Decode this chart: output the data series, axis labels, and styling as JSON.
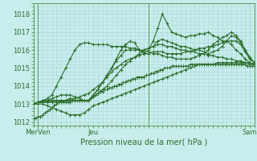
{
  "title": "",
  "xlabel": "Pression niveau de la mer( hPa )",
  "ylabel": "",
  "bg_color": "#c8edec",
  "grid_color": "#a8d8d8",
  "line_color": "#2d6e2d",
  "spine_color": "#5a9a5a",
  "ylim": [
    1011.8,
    1018.6
  ],
  "xlim": [
    0,
    96
  ],
  "yticks": [
    1012,
    1013,
    1014,
    1015,
    1016,
    1017,
    1018
  ],
  "xtick_positions": [
    2,
    26,
    50,
    94
  ],
  "xtick_labels": [
    "MerVen",
    "Jeu",
    "",
    "Sam"
  ],
  "marker": "+",
  "markersize": 3,
  "linewidth": 0.8,
  "lines": [
    {
      "x": [
        0,
        1,
        2,
        3,
        4,
        5,
        6,
        7,
        8,
        9,
        10,
        11,
        12,
        13,
        14,
        15,
        16,
        17,
        18,
        19,
        20,
        21,
        22,
        23,
        24,
        25,
        26,
        27,
        28,
        29,
        30,
        31,
        32,
        33,
        34,
        35,
        36,
        37,
        38,
        39,
        40,
        41,
        42,
        43,
        44,
        45,
        46,
        47,
        48,
        49,
        50,
        51,
        52,
        53,
        54,
        55,
        56,
        57,
        58,
        59,
        60,
        61,
        62,
        63,
        64,
        65,
        66,
        67,
        68,
        69,
        70,
        71,
        72,
        73,
        74,
        75,
        76,
        77,
        78,
        79,
        80,
        81,
        82,
        83,
        84,
        85,
        86,
        87,
        88,
        89,
        90,
        91,
        92,
        93,
        94,
        95,
        96
      ],
      "y": [
        1012.2,
        1012.2,
        1012.3,
        1012.3,
        1012.4,
        1012.5,
        1012.6,
        1012.7,
        1012.8,
        1012.9,
        1013.0,
        1013.1,
        1013.1,
        1013.1,
        1013.1,
        1013.1,
        1013.1,
        1013.2,
        1013.2,
        1013.2,
        1013.2,
        1013.2,
        1013.2,
        1013.2,
        1013.2,
        1013.3,
        1013.4,
        1013.5,
        1013.6,
        1013.7,
        1013.7,
        1013.8,
        1013.8,
        1013.9,
        1013.9,
        1014.0,
        1014.0,
        1014.1,
        1014.1,
        1014.2,
        1014.2,
        1014.3,
        1014.3,
        1014.4,
        1014.4,
        1014.5,
        1014.5,
        1014.5,
        1014.5,
        1014.6,
        1014.6,
        1014.7,
        1014.7,
        1014.8,
        1014.8,
        1014.9,
        1014.9,
        1015.0,
        1015.0,
        1015.0,
        1015.1,
        1015.1,
        1015.1,
        1015.1,
        1015.1,
        1015.1,
        1015.1,
        1015.1,
        1015.2,
        1015.2,
        1015.2,
        1015.2,
        1015.2,
        1015.2,
        1015.2,
        1015.2,
        1015.2,
        1015.2,
        1015.2,
        1015.2,
        1015.2,
        1015.2,
        1015.2,
        1015.2,
        1015.2,
        1015.2,
        1015.2,
        1015.2,
        1015.2,
        1015.2,
        1015.2,
        1015.2,
        1015.2,
        1015.1,
        1015.1,
        1015.1,
        1015.1
      ]
    },
    {
      "x": [
        0,
        2,
        4,
        6,
        8,
        10,
        12,
        14,
        16,
        18,
        20,
        22,
        24,
        26,
        28,
        30,
        32,
        34,
        36,
        38,
        40,
        42,
        44,
        46,
        48,
        50,
        52,
        54,
        56,
        58,
        60,
        62,
        64,
        66,
        68,
        70,
        72,
        74,
        76,
        78,
        80,
        82,
        84,
        86,
        88,
        90,
        92,
        94,
        96
      ],
      "y": [
        1013.0,
        1013.1,
        1013.1,
        1013.2,
        1013.2,
        1013.2,
        1013.2,
        1013.2,
        1013.3,
        1013.2,
        1013.2,
        1013.2,
        1013.2,
        1013.4,
        1013.6,
        1013.8,
        1014.0,
        1014.3,
        1014.6,
        1014.9,
        1015.2,
        1015.4,
        1015.6,
        1015.8,
        1016.0,
        1016.1,
        1016.2,
        1016.3,
        1016.3,
        1016.2,
        1016.2,
        1016.1,
        1016.0,
        1016.0,
        1015.9,
        1015.9,
        1015.8,
        1015.8,
        1015.7,
        1015.7,
        1015.6,
        1015.6,
        1015.5,
        1015.5,
        1015.4,
        1015.4,
        1015.3,
        1015.3,
        1015.2
      ]
    },
    {
      "x": [
        0,
        2,
        4,
        6,
        8,
        10,
        12,
        14,
        16,
        18,
        20,
        22,
        24,
        26,
        28,
        30,
        32,
        34,
        36,
        38,
        40,
        42,
        44,
        46,
        48,
        50,
        52,
        54,
        56,
        58,
        60,
        62,
        64,
        66,
        68,
        70,
        72,
        74,
        76,
        78,
        80,
        82,
        84,
        86,
        88,
        90,
        92,
        94,
        96
      ],
      "y": [
        1013.0,
        1013.1,
        1013.2,
        1013.2,
        1013.3,
        1013.4,
        1013.5,
        1013.5,
        1013.5,
        1013.4,
        1013.3,
        1013.2,
        1013.2,
        1013.5,
        1013.8,
        1014.2,
        1014.6,
        1015.0,
        1015.5,
        1016.0,
        1016.3,
        1016.5,
        1016.4,
        1016.0,
        1015.8,
        1016.0,
        1016.5,
        1017.2,
        1018.0,
        1017.5,
        1017.0,
        1016.9,
        1016.8,
        1016.7,
        1016.8,
        1016.8,
        1016.9,
        1016.9,
        1017.0,
        1016.8,
        1016.7,
        1016.5,
        1016.5,
        1016.3,
        1016.0,
        1015.8,
        1015.5,
        1015.3,
        1015.2
      ]
    },
    {
      "x": [
        0,
        2,
        4,
        6,
        8,
        10,
        12,
        14,
        16,
        18,
        20,
        22,
        24,
        26,
        28,
        30,
        32,
        34,
        36,
        38,
        40,
        42,
        44,
        46,
        48,
        50,
        52,
        54,
        56,
        58,
        60,
        62,
        64,
        66,
        68,
        70,
        72,
        74,
        76,
        78,
        80,
        82,
        84,
        86,
        88,
        90,
        92,
        94,
        96
      ],
      "y": [
        1013.0,
        1013.1,
        1013.2,
        1013.3,
        1013.5,
        1014.0,
        1014.5,
        1015.0,
        1015.5,
        1016.0,
        1016.3,
        1016.4,
        1016.4,
        1016.3,
        1016.3,
        1016.3,
        1016.3,
        1016.2,
        1016.2,
        1016.2,
        1016.2,
        1016.1,
        1016.1,
        1016.0,
        1015.9,
        1015.9,
        1015.8,
        1015.8,
        1015.7,
        1015.6,
        1015.6,
        1015.5,
        1015.5,
        1015.5,
        1015.5,
        1015.6,
        1015.7,
        1015.8,
        1016.0,
        1016.3,
        1016.5,
        1016.7,
        1016.8,
        1017.0,
        1016.8,
        1016.5,
        1016.0,
        1015.5,
        1015.3
      ]
    },
    {
      "x": [
        0,
        2,
        4,
        6,
        8,
        10,
        12,
        14,
        16,
        18,
        20,
        22,
        24,
        26,
        28,
        30,
        32,
        34,
        36,
        38,
        40,
        42,
        44,
        46,
        48,
        50,
        52,
        54,
        56,
        58,
        60,
        62,
        64,
        66,
        68,
        70,
        72,
        74,
        76,
        78,
        80,
        82,
        84,
        86,
        88,
        90,
        92,
        94,
        96
      ],
      "y": [
        1013.0,
        1013.1,
        1013.1,
        1013.1,
        1013.1,
        1013.1,
        1013.1,
        1013.2,
        1013.2,
        1013.2,
        1013.2,
        1013.2,
        1013.2,
        1013.5,
        1013.8,
        1014.2,
        1014.6,
        1015.0,
        1015.4,
        1015.7,
        1016.0,
        1016.0,
        1016.0,
        1016.0,
        1016.0,
        1016.1,
        1016.2,
        1016.5,
        1016.6,
        1016.5,
        1016.4,
        1016.3,
        1016.2,
        1016.2,
        1016.1,
        1016.0,
        1016.0,
        1015.9,
        1015.8,
        1015.9,
        1016.0,
        1016.2,
        1016.5,
        1016.8,
        1016.7,
        1016.4,
        1016.0,
        1015.6,
        1015.3
      ]
    },
    {
      "x": [
        0,
        2,
        4,
        6,
        8,
        10,
        12,
        14,
        16,
        18,
        20,
        22,
        24,
        26,
        28,
        30,
        32,
        34,
        36,
        38,
        40,
        42,
        44,
        46,
        48,
        50,
        52,
        54,
        56,
        58,
        60,
        62,
        64,
        66,
        68,
        70,
        72,
        74,
        76,
        78,
        80,
        82,
        84,
        86,
        88,
        90,
        92,
        94,
        96
      ],
      "y": [
        1013.0,
        1013.1,
        1013.1,
        1013.1,
        1013.2,
        1013.2,
        1013.2,
        1013.2,
        1013.3,
        1013.3,
        1013.4,
        1013.5,
        1013.6,
        1013.8,
        1014.0,
        1014.2,
        1014.5,
        1014.8,
        1015.0,
        1015.2,
        1015.4,
        1015.5,
        1015.6,
        1015.7,
        1015.8,
        1015.8,
        1015.9,
        1015.9,
        1015.9,
        1015.8,
        1015.8,
        1015.8,
        1015.8,
        1015.9,
        1015.9,
        1016.0,
        1016.1,
        1016.1,
        1016.2,
        1016.2,
        1016.3,
        1016.4,
        1016.5,
        1016.5,
        1016.5,
        1016.3,
        1015.9,
        1015.5,
        1015.3
      ]
    },
    {
      "x": [
        0,
        2,
        4,
        6,
        8,
        10,
        12,
        14,
        16,
        18,
        20,
        22,
        24,
        26,
        28,
        30,
        32,
        34,
        36,
        38,
        40,
        42,
        44,
        46,
        48,
        50,
        52,
        54,
        56,
        58,
        60,
        62,
        64,
        66,
        68,
        70,
        72,
        74,
        76,
        78,
        80,
        82,
        84,
        86,
        88,
        90,
        92,
        94,
        96
      ],
      "y": [
        1013.0,
        1013.0,
        1013.0,
        1012.9,
        1012.8,
        1012.7,
        1012.6,
        1012.5,
        1012.4,
        1012.4,
        1012.4,
        1012.5,
        1012.7,
        1012.9,
        1013.0,
        1013.1,
        1013.2,
        1013.3,
        1013.4,
        1013.5,
        1013.6,
        1013.7,
        1013.8,
        1013.9,
        1014.0,
        1014.1,
        1014.2,
        1014.3,
        1014.4,
        1014.5,
        1014.6,
        1014.7,
        1014.8,
        1014.9,
        1015.0,
        1015.1,
        1015.2,
        1015.2,
        1015.2,
        1015.2,
        1015.3,
        1015.3,
        1015.3,
        1015.3,
        1015.3,
        1015.3,
        1015.3,
        1015.2,
        1015.2
      ]
    }
  ]
}
